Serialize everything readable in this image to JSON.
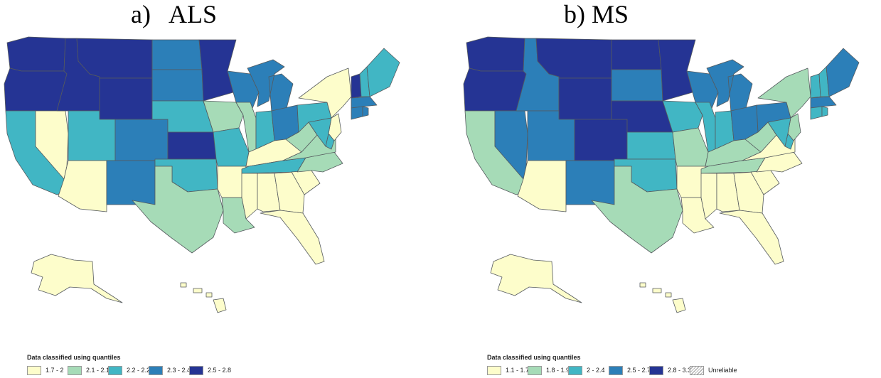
{
  "panels": [
    {
      "title": "a)   ALS",
      "legend_title": "Data classified using quantiles",
      "legend": [
        {
          "label": "1.7 - 2",
          "color": "#fdfdcb"
        },
        {
          "label": "2.1 - 2.1",
          "color": "#a6dbb7"
        },
        {
          "label": "2.2 - 2.2",
          "color": "#41b6c4"
        },
        {
          "label": "2.3 - 2.4",
          "color": "#2c7fb8"
        },
        {
          "label": "2.5 - 2.8",
          "color": "#253494"
        }
      ],
      "states": {
        "WA": 4,
        "OR": 4,
        "ID": 4,
        "MT": 4,
        "WY": 4,
        "MN": 4,
        "KS": 4,
        "VT": 4,
        "ND": 3,
        "SD": 3,
        "CO": 3,
        "NM": 3,
        "WI": 3,
        "MI": 3,
        "OH": 3,
        "MA": 3,
        "CT": 3,
        "RI": 3,
        "CA": 2,
        "UT": 2,
        "NE": 2,
        "MO": 2,
        "IN": 2,
        "PA": 2,
        "OK": 2,
        "TN": 2,
        "ME": 2,
        "NH": 2,
        "MD": 2,
        "DE": 2,
        "IA": 1,
        "IL": 1,
        "TX": 1,
        "LA": 1,
        "WV": 1,
        "VA": 1,
        "NC": 1,
        "NV": 0,
        "AZ": 0,
        "AR": 0,
        "MS": 0,
        "AL": 0,
        "GA": 0,
        "SC": 0,
        "FL": 0,
        "KY": 0,
        "NY": 0,
        "NJ": 0,
        "AK": 0,
        "HI": 0
      }
    },
    {
      "title": "b) MS",
      "legend_title": "Data classified using quantiles",
      "legend": [
        {
          "label": "1.1 - 1.7",
          "color": "#fdfdcb"
        },
        {
          "label": "1.8 - 1.9",
          "color": "#a6dbb7"
        },
        {
          "label": "2 - 2.4",
          "color": "#41b6c4"
        },
        {
          "label": "2.5 - 2.7",
          "color": "#2c7fb8"
        },
        {
          "label": "2.8 - 3.3",
          "color": "#253494"
        },
        {
          "label": "Unreliable",
          "color": "hatched"
        }
      ],
      "states": {
        "WA": 4,
        "OR": 4,
        "MT": 4,
        "WY": 4,
        "ND": 4,
        "MN": 4,
        "NE": 4,
        "CO": 4,
        "ID": 3,
        "NV": 3,
        "UT": 3,
        "NM": 3,
        "SD": 3,
        "WI": 3,
        "MI": 3,
        "OH": 3,
        "ME": 3,
        "MA": 3,
        "PA": 3,
        "IA": 2,
        "KS": 2,
        "OK": 2,
        "IL": 2,
        "IN": 2,
        "VT": 2,
        "NH": 2,
        "CT": 2,
        "RI": 2,
        "MD": 2,
        "DE": 2,
        "CA": 1,
        "TX": 1,
        "MO": 1,
        "KY": 1,
        "TN": 1,
        "WV": 1,
        "NY": 1,
        "NJ": 1,
        "AZ": 0,
        "AR": 0,
        "LA": 0,
        "MS": 0,
        "AL": 0,
        "GA": 0,
        "SC": 0,
        "FL": 0,
        "NC": 0,
        "VA": 0,
        "AK": 0,
        "HI": 0
      }
    }
  ]
}
